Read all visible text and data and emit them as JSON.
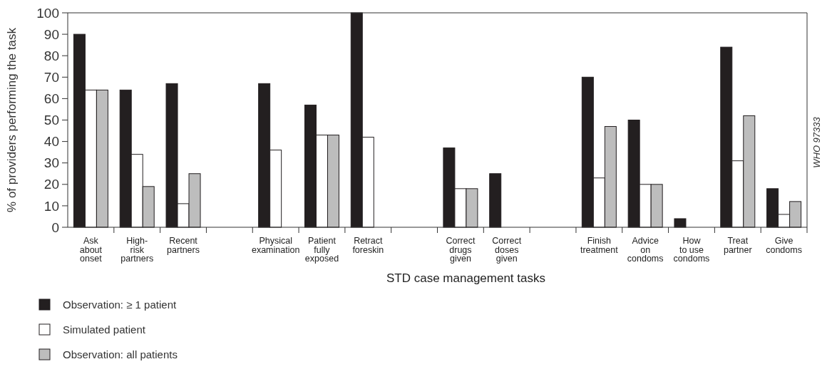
{
  "chart_data": {
    "type": "bar",
    "xlabel": "STD case management tasks",
    "ylabel": "% of providers performing the task",
    "categories": [
      "Ask\nabout\nonset",
      "High-\nrisk\npartners",
      "Recent\npartners",
      null,
      "Physical\nexamination",
      "Patient\nfully\nexposed",
      "Retract\nforeskin",
      null,
      "Correct\ndrugs\ngiven",
      "Correct\ndoses\ngiven",
      null,
      "Finish\ntreatment",
      "Advice\non\ncondoms",
      "How\nto use\ncondoms",
      "Treat\npartner",
      "Give\ncondoms"
    ],
    "series": [
      {
        "name": "Observation: ≥ 1 patient",
        "color": "#231f20",
        "values": [
          90,
          64,
          67,
          null,
          67,
          57,
          100,
          null,
          37,
          25,
          null,
          70,
          50,
          4,
          84,
          18
        ]
      },
      {
        "name": "Simulated patient",
        "color": "#ffffff",
        "values": [
          64,
          34,
          11,
          null,
          36,
          43,
          42,
          null,
          18,
          null,
          null,
          23,
          20,
          null,
          31,
          6
        ]
      },
      {
        "name": "Observation: all patients",
        "color": "#bdbdbd",
        "values": [
          64,
          19,
          25,
          null,
          null,
          43,
          null,
          null,
          18,
          null,
          null,
          47,
          20,
          null,
          52,
          12
        ]
      }
    ],
    "ylim": [
      0,
      100
    ],
    "yticks": [
      0,
      10,
      20,
      30,
      40,
      50,
      60,
      70,
      80,
      90,
      100
    ],
    "legend": "bottom left",
    "annotations": [
      "WHO 97333"
    ]
  }
}
